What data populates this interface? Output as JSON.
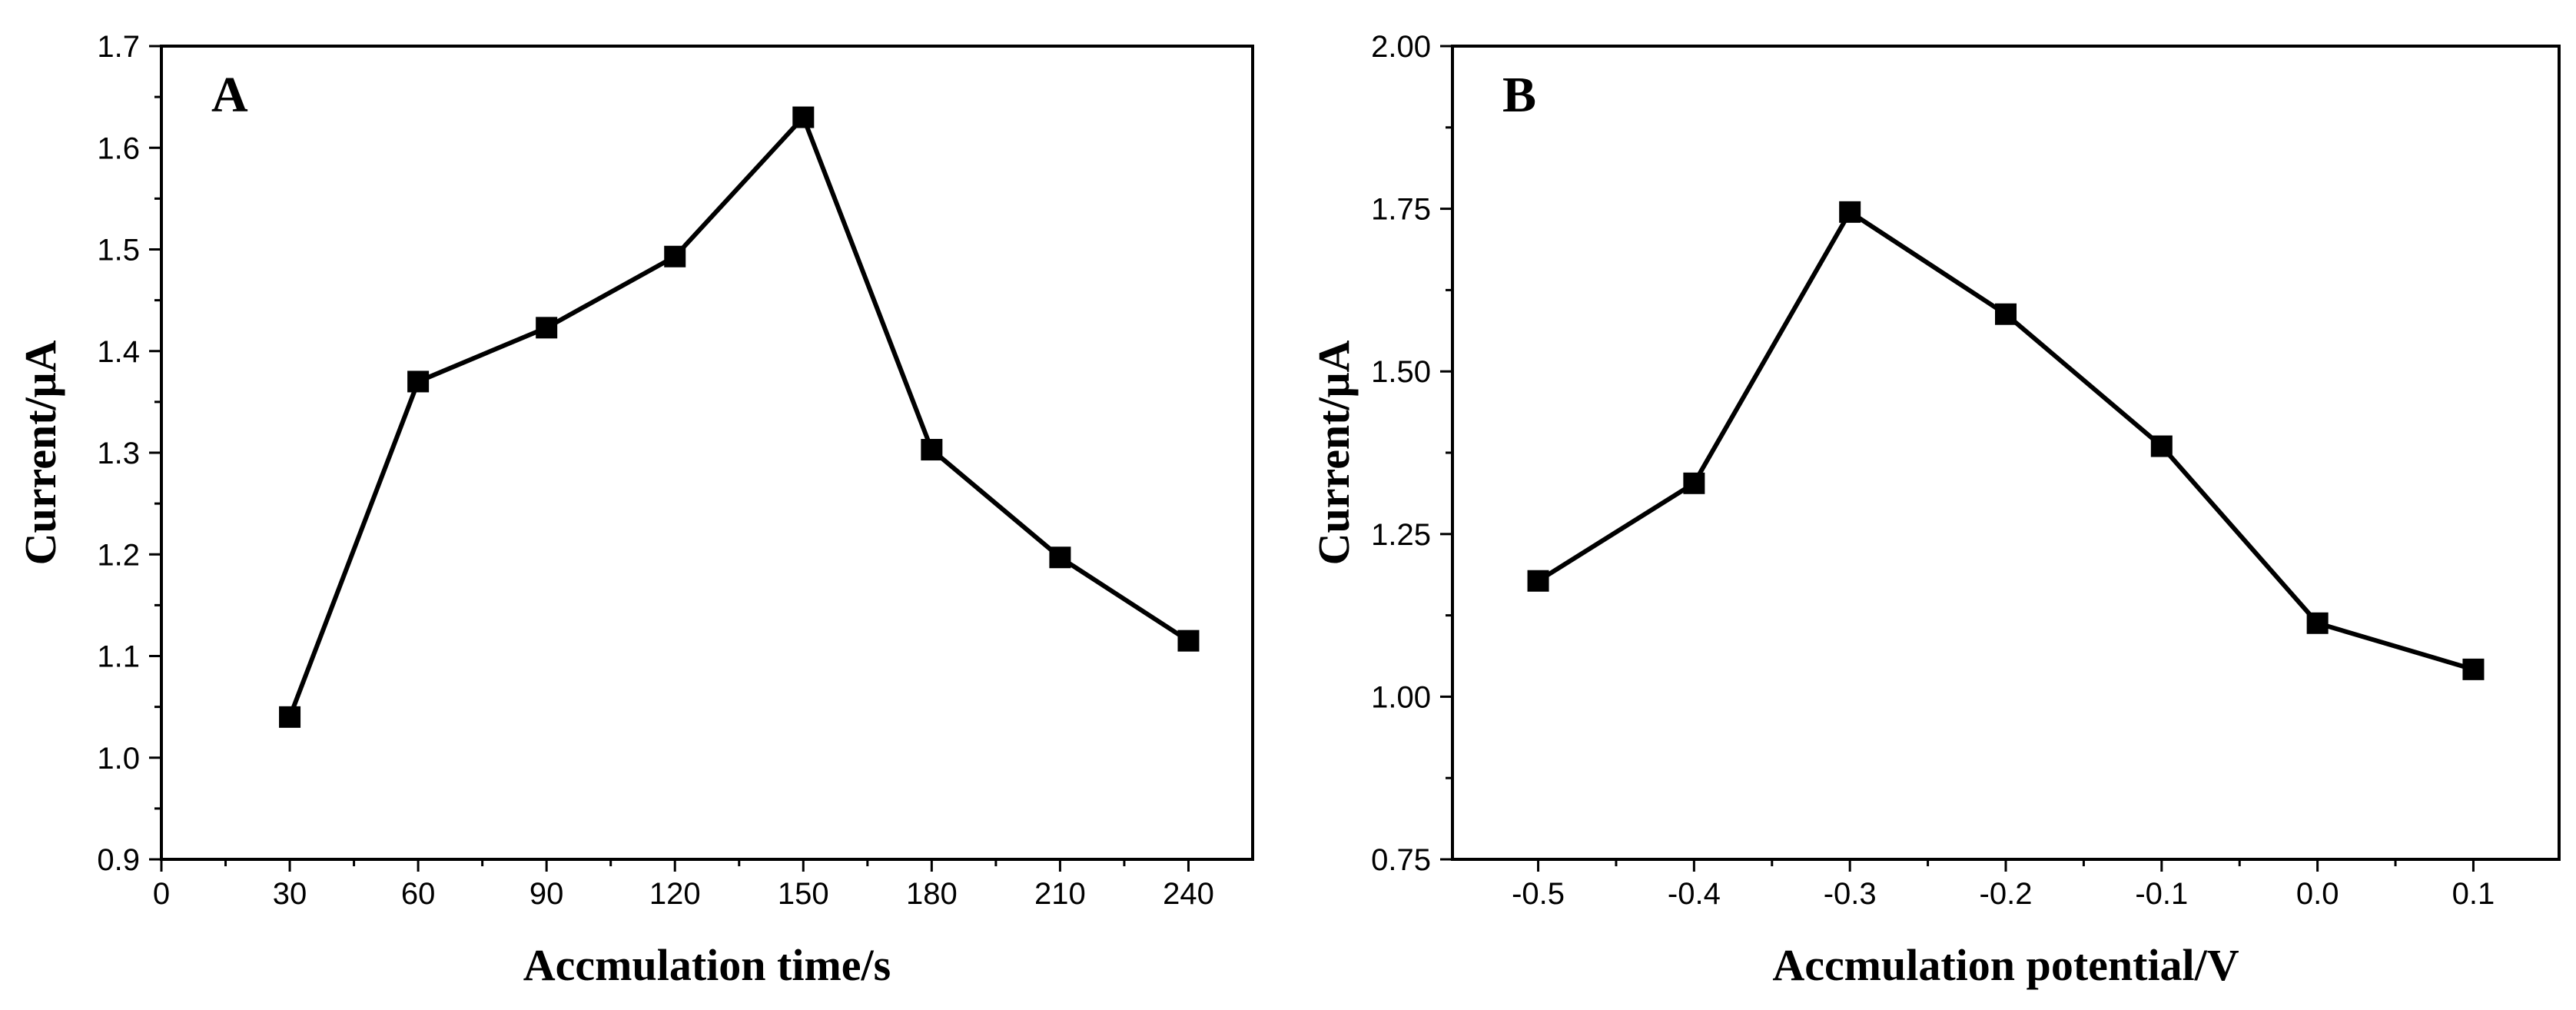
{
  "chart_data": [
    {
      "type": "line",
      "panel_label": "A",
      "title": "",
      "xlabel": "Accmulation time/s",
      "ylabel": "Current/μA",
      "xlim": [
        0,
        255
      ],
      "ylim": [
        0.9,
        1.7
      ],
      "xticks": [
        0,
        30,
        60,
        90,
        120,
        150,
        180,
        210,
        240
      ],
      "xtick_labels": [
        "0",
        "30",
        "60",
        "90",
        "120",
        "150",
        "180",
        "210",
        "240"
      ],
      "yticks": [
        0.9,
        1.0,
        1.1,
        1.2,
        1.3,
        1.4,
        1.5,
        1.6,
        1.7
      ],
      "ytick_labels": [
        "0.9",
        "1.0",
        "1.1",
        "1.2",
        "1.3",
        "1.4",
        "1.5",
        "1.6",
        "1.7"
      ],
      "grid": false,
      "series": [
        {
          "name": "current",
          "marker": "square",
          "x": [
            30,
            60,
            90,
            120,
            150,
            180,
            210,
            240
          ],
          "y": [
            1.04,
            1.37,
            1.423,
            1.493,
            1.63,
            1.303,
            1.197,
            1.115
          ]
        }
      ]
    },
    {
      "type": "line",
      "panel_label": "B",
      "title": "",
      "xlabel": "Accmulation potential/V",
      "ylabel": "Current/μA",
      "xlim": [
        -0.555,
        0.155
      ],
      "ylim": [
        0.75,
        2.0
      ],
      "xticks": [
        -0.5,
        -0.4,
        -0.3,
        -0.2,
        -0.1,
        0.0,
        0.1
      ],
      "xtick_labels": [
        "-0.5",
        "-0.4",
        "-0.3",
        "-0.2",
        "-0.1",
        "0.0",
        "0.1"
      ],
      "yticks": [
        0.75,
        1.0,
        1.25,
        1.5,
        1.75,
        2.0
      ],
      "ytick_labels": [
        "0.75",
        "1.00",
        "1.25",
        "1.50",
        "1.75",
        "2.00"
      ],
      "grid": false,
      "series": [
        {
          "name": "current",
          "marker": "square",
          "x": [
            -0.5,
            -0.4,
            -0.3,
            -0.2,
            -0.1,
            0.0,
            0.1
          ],
          "y": [
            1.178,
            1.328,
            1.745,
            1.588,
            1.385,
            1.113,
            1.042
          ]
        }
      ]
    }
  ]
}
